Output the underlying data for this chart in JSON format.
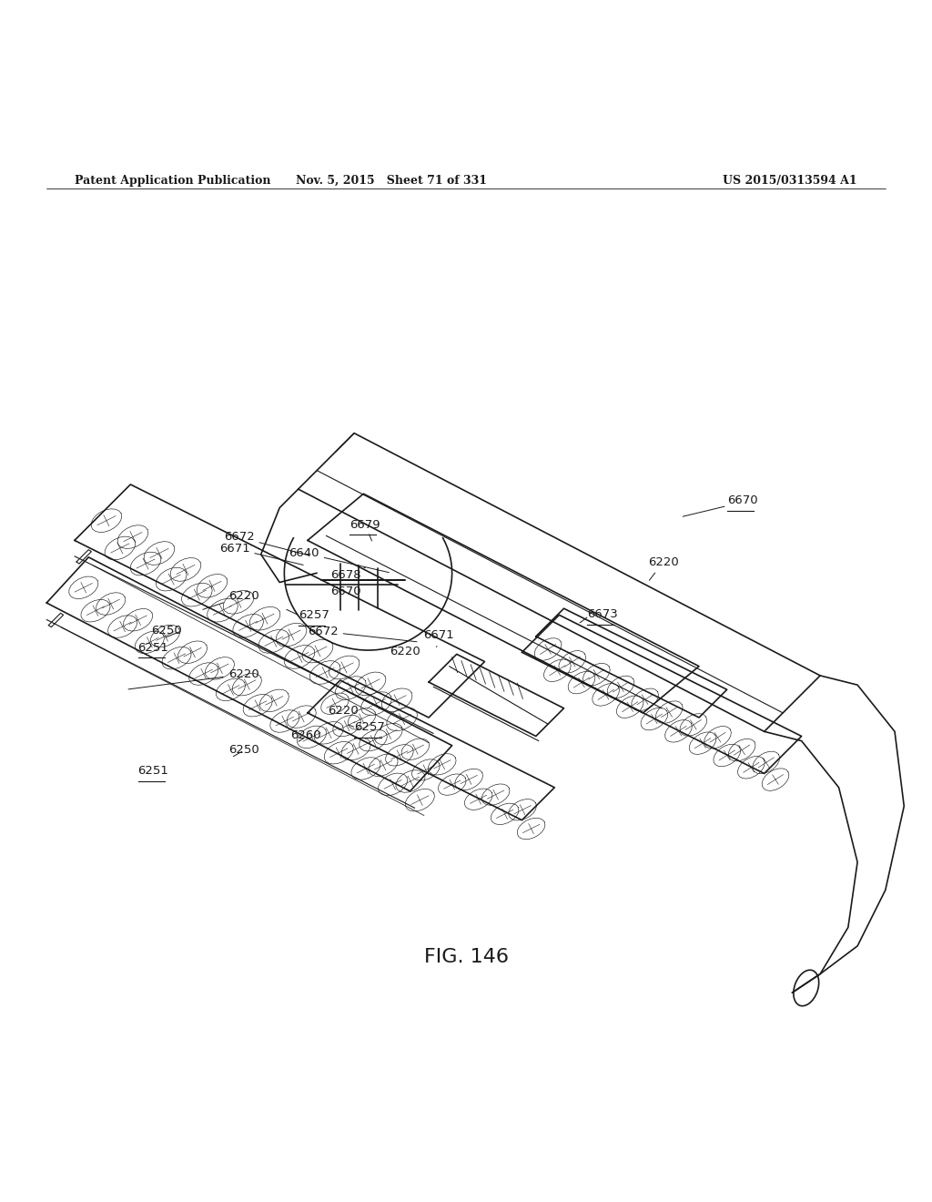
{
  "header_left": "Patent Application Publication",
  "header_middle": "Nov. 5, 2015   Sheet 71 of 331",
  "header_right": "US 2015/0313594 A1",
  "figure_label": "FIG. 146",
  "bg_color": "#ffffff",
  "line_color": "#1a1a1a"
}
